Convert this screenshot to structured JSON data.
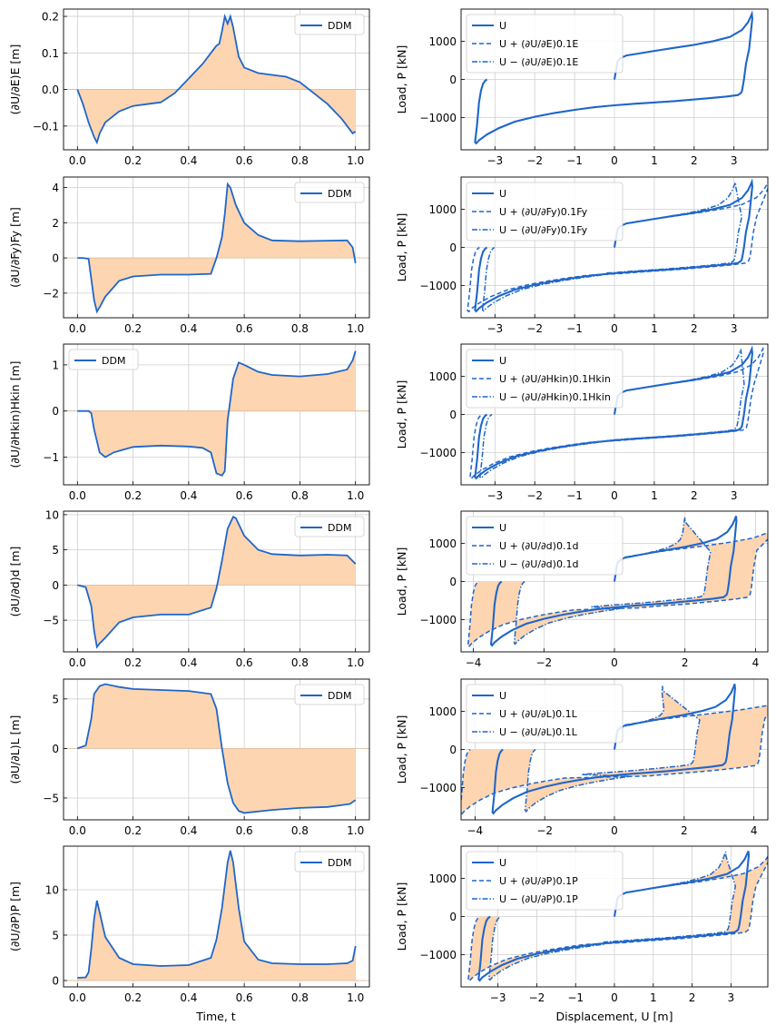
{
  "figure": {
    "left_xlabel": "Time, t",
    "right_xlabel": "Displacement, U [m]",
    "right_ylabel": "Load, P [kN]"
  },
  "colors": {
    "line": "#1f66c9",
    "fill": "#fdd5b1",
    "grid": "#cfcfcf"
  },
  "chart_data": [
    {
      "type": "line",
      "panel": "left",
      "row": 0,
      "ylabel": "(∂U/∂E)E [m]",
      "legend": [
        "DDM"
      ],
      "legend_position": "top-right",
      "fill_to_zero": true,
      "grid": true,
      "xlim": [
        -0.05,
        1.05
      ],
      "ylim": [
        -0.165,
        0.22
      ],
      "xticks": [
        0.0,
        0.2,
        0.4,
        0.6,
        0.8,
        1.0
      ],
      "yticks": [
        -0.1,
        0.0,
        0.1,
        0.2
      ],
      "x": [
        0,
        0.02,
        0.04,
        0.06,
        0.07,
        0.08,
        0.1,
        0.15,
        0.2,
        0.25,
        0.3,
        0.35,
        0.4,
        0.45,
        0.48,
        0.5,
        0.51,
        0.52,
        0.53,
        0.54,
        0.55,
        0.56,
        0.57,
        0.58,
        0.6,
        0.65,
        0.7,
        0.75,
        0.8,
        0.85,
        0.9,
        0.95,
        0.98,
        0.99,
        1.0
      ],
      "y": [
        0,
        -0.04,
        -0.09,
        -0.13,
        -0.145,
        -0.12,
        -0.09,
        -0.06,
        -0.045,
        -0.04,
        -0.035,
        -0.01,
        0.03,
        0.07,
        0.1,
        0.12,
        0.125,
        0.16,
        0.2,
        0.18,
        0.2,
        0.17,
        0.13,
        0.09,
        0.06,
        0.045,
        0.04,
        0.035,
        0.02,
        -0.01,
        -0.04,
        -0.08,
        -0.11,
        -0.12,
        -0.115
      ]
    },
    {
      "type": "line",
      "panel": "left",
      "row": 1,
      "ylabel": "(∂U/∂Fy)Fy [m]",
      "legend": [
        "DDM"
      ],
      "legend_position": "top-right",
      "fill_to_zero": true,
      "grid": true,
      "xlim": [
        -0.05,
        1.05
      ],
      "ylim": [
        -3.4,
        4.6
      ],
      "xticks": [
        0.0,
        0.2,
        0.4,
        0.6,
        0.8,
        1.0
      ],
      "yticks": [
        -2,
        0,
        2,
        4
      ],
      "x": [
        0,
        0.02,
        0.04,
        0.05,
        0.06,
        0.07,
        0.08,
        0.1,
        0.15,
        0.2,
        0.3,
        0.4,
        0.48,
        0.5,
        0.51,
        0.52,
        0.53,
        0.54,
        0.55,
        0.57,
        0.6,
        0.65,
        0.7,
        0.8,
        0.9,
        0.97,
        0.99,
        1.0
      ],
      "y": [
        0,
        0,
        -0.05,
        -1.2,
        -2.4,
        -3.05,
        -2.8,
        -2.2,
        -1.3,
        -1.05,
        -0.95,
        -0.95,
        -0.9,
        0.0,
        0.6,
        1.2,
        2.5,
        4.2,
        4.0,
        3.0,
        2.0,
        1.3,
        1.0,
        0.95,
        0.98,
        1.0,
        0.6,
        -0.3
      ]
    },
    {
      "type": "line",
      "panel": "left",
      "row": 2,
      "ylabel": "(∂U/∂Hkin)Hkin [m]",
      "legend": [
        "DDM"
      ],
      "legend_position": "top-left",
      "fill_to_zero": true,
      "grid": true,
      "xlim": [
        -0.05,
        1.05
      ],
      "ylim": [
        -1.6,
        1.45
      ],
      "xticks": [
        0.0,
        0.2,
        0.4,
        0.6,
        0.8,
        1.0
      ],
      "yticks": [
        -1,
        0,
        1
      ],
      "x": [
        0,
        0.04,
        0.05,
        0.06,
        0.08,
        0.1,
        0.13,
        0.2,
        0.3,
        0.4,
        0.45,
        0.48,
        0.5,
        0.52,
        0.53,
        0.54,
        0.56,
        0.58,
        0.6,
        0.65,
        0.7,
        0.8,
        0.9,
        0.97,
        0.99,
        1.0
      ],
      "y": [
        0,
        0,
        -0.05,
        -0.4,
        -0.9,
        -1.0,
        -0.9,
        -0.78,
        -0.75,
        -0.77,
        -0.8,
        -0.9,
        -1.35,
        -1.4,
        -1.3,
        -0.2,
        0.7,
        1.05,
        1.0,
        0.85,
        0.78,
        0.75,
        0.8,
        0.9,
        1.1,
        1.3
      ]
    },
    {
      "type": "line",
      "panel": "left",
      "row": 3,
      "ylabel": "(∂U/∂d)d [m]",
      "legend": [
        "DDM"
      ],
      "legend_position": "top-right",
      "fill_to_zero": true,
      "grid": true,
      "xlim": [
        -0.05,
        1.05
      ],
      "ylim": [
        -9.5,
        10.5
      ],
      "xticks": [
        0.0,
        0.2,
        0.4,
        0.6,
        0.8,
        1.0
      ],
      "yticks": [
        -5,
        0,
        5,
        10
      ],
      "x": [
        0,
        0.03,
        0.05,
        0.06,
        0.07,
        0.08,
        0.1,
        0.15,
        0.2,
        0.3,
        0.4,
        0.48,
        0.5,
        0.52,
        0.54,
        0.56,
        0.57,
        0.6,
        0.65,
        0.7,
        0.8,
        0.9,
        0.97,
        1.0
      ],
      "y": [
        0,
        -0.3,
        -3.0,
        -6.5,
        -8.8,
        -8.3,
        -7.5,
        -5.3,
        -4.6,
        -4.2,
        -4.2,
        -3.2,
        -0.5,
        3.5,
        8.0,
        9.7,
        9.5,
        7.0,
        5.0,
        4.4,
        4.2,
        4.3,
        4.2,
        3.0
      ]
    },
    {
      "type": "line",
      "panel": "left",
      "row": 4,
      "ylabel": "(∂U/∂L)L [m]",
      "legend": [
        "DDM"
      ],
      "legend_position": "top-right",
      "fill_to_zero": true,
      "grid": true,
      "xlim": [
        -0.05,
        1.05
      ],
      "ylim": [
        -7.2,
        7.0
      ],
      "xticks": [
        0.0,
        0.2,
        0.4,
        0.6,
        0.8,
        1.0
      ],
      "yticks": [
        -5,
        0,
        5
      ],
      "x": [
        0,
        0.03,
        0.05,
        0.06,
        0.08,
        0.1,
        0.15,
        0.2,
        0.3,
        0.4,
        0.48,
        0.5,
        0.52,
        0.54,
        0.56,
        0.58,
        0.6,
        0.7,
        0.8,
        0.9,
        0.98,
        1.0
      ],
      "y": [
        0,
        0.3,
        3.0,
        5.5,
        6.3,
        6.5,
        6.2,
        6.0,
        5.9,
        5.8,
        5.5,
        4.0,
        0.0,
        -3.5,
        -5.5,
        -6.3,
        -6.5,
        -6.2,
        -6.0,
        -5.9,
        -5.6,
        -5.2
      ]
    },
    {
      "type": "line",
      "panel": "left",
      "row": 5,
      "ylabel": "(∂U/∂P)P [m]",
      "legend": [
        "DDM"
      ],
      "legend_position": "top-right",
      "fill_to_zero": true,
      "grid": true,
      "xlim": [
        -0.05,
        1.05
      ],
      "ylim": [
        -0.7,
        14.8
      ],
      "xticks": [
        0.0,
        0.2,
        0.4,
        0.6,
        0.8,
        1.0
      ],
      "yticks": [
        0,
        5,
        10
      ],
      "x": [
        0,
        0.03,
        0.04,
        0.05,
        0.06,
        0.07,
        0.08,
        0.1,
        0.15,
        0.2,
        0.3,
        0.4,
        0.48,
        0.5,
        0.52,
        0.54,
        0.55,
        0.56,
        0.58,
        0.6,
        0.65,
        0.7,
        0.8,
        0.9,
        0.97,
        0.99,
        1.0
      ],
      "y": [
        0.3,
        0.35,
        0.9,
        3.5,
        6.8,
        8.8,
        7.5,
        4.8,
        2.5,
        1.8,
        1.6,
        1.7,
        2.5,
        4.5,
        8.0,
        13.0,
        14.3,
        13.0,
        8.0,
        4.3,
        2.3,
        1.9,
        1.8,
        1.8,
        1.9,
        2.2,
        3.8
      ]
    },
    {
      "type": "line",
      "panel": "right",
      "row": 0,
      "ylabel": "Load, P [kN]",
      "legend": [
        "U",
        "U + (∂U/∂E)0.1E",
        "U − (∂U/∂E)0.1E"
      ],
      "legend_position": "top-left",
      "grid": true,
      "spread": 0,
      "xlim": [
        -3.85,
        3.85
      ],
      "ylim": [
        -1850,
        1850
      ],
      "xticks": [
        -3,
        -2,
        -1,
        0,
        1,
        2,
        3
      ],
      "yticks": [
        -1000,
        0,
        1000
      ],
      "x": [
        0,
        0.08,
        0.15,
        0.3,
        0.6,
        1.0,
        1.5,
        2.0,
        2.5,
        2.9,
        3.2,
        3.35,
        3.42,
        3.45,
        3.46,
        3.38,
        3.3,
        3.25,
        3.22,
        3.2,
        3.18,
        3.1,
        2.8,
        2.3,
        1.5,
        0.5,
        0,
        -0.5,
        -1.0,
        -1.5,
        -2.0,
        -2.5,
        -2.9,
        -3.2,
        -3.4,
        -3.47,
        -3.5,
        -3.45,
        -3.4,
        -3.35,
        -3.3,
        -3.25,
        -3.2
      ],
      "y": [
        0,
        480,
        560,
        630,
        680,
        750,
        830,
        910,
        1010,
        1120,
        1300,
        1500,
        1650,
        1720,
        1600,
        800,
        400,
        0,
        -200,
        -300,
        -350,
        -410,
        -450,
        -500,
        -570,
        -640,
        -680,
        -730,
        -800,
        -880,
        -980,
        -1110,
        -1280,
        -1450,
        -1600,
        -1680,
        -1650,
        -1200,
        -600,
        -300,
        -120,
        -40,
        0
      ]
    },
    {
      "type": "line",
      "panel": "right",
      "row": 1,
      "ylabel": "Load, P [kN]",
      "legend": [
        "U",
        "U + (∂U/∂Fy)0.1Fy",
        "U − (∂U/∂Fy)0.1Fy"
      ],
      "legend_position": "top-left",
      "grid": true,
      "spread": 0.12,
      "xlim": [
        -3.85,
        3.85
      ],
      "ylim": [
        -1850,
        1850
      ],
      "xticks": [
        -3,
        -2,
        -1,
        0,
        1,
        2,
        3
      ],
      "yticks": [
        -1000,
        0,
        1000
      ],
      "x": [
        0,
        0.08,
        0.15,
        0.3,
        0.6,
        1.0,
        1.5,
        2.0,
        2.5,
        2.9,
        3.2,
        3.35,
        3.42,
        3.45,
        3.46,
        3.38,
        3.3,
        3.25,
        3.22,
        3.2,
        3.18,
        3.1,
        2.8,
        2.3,
        1.5,
        0.5,
        0,
        -0.5,
        -1.0,
        -1.5,
        -2.0,
        -2.5,
        -2.9,
        -3.2,
        -3.4,
        -3.47,
        -3.5,
        -3.45,
        -3.4,
        -3.35,
        -3.3,
        -3.25,
        -3.2
      ],
      "y": [
        0,
        480,
        560,
        630,
        680,
        750,
        830,
        910,
        1010,
        1120,
        1300,
        1500,
        1650,
        1720,
        1600,
        800,
        400,
        0,
        -200,
        -300,
        -350,
        -410,
        -450,
        -500,
        -570,
        -640,
        -680,
        -730,
        -800,
        -880,
        -980,
        -1110,
        -1280,
        -1450,
        -1600,
        -1680,
        -1650,
        -1200,
        -600,
        -300,
        -120,
        -40,
        0
      ]
    },
    {
      "type": "line",
      "panel": "right",
      "row": 2,
      "ylabel": "Load, P [kN]",
      "legend": [
        "U",
        "U + (∂U/∂Hkin)0.1Hkin",
        "U − (∂U/∂Hkin)0.1Hkin"
      ],
      "legend_position": "top-left",
      "grid": true,
      "spread": 0.08,
      "xlim": [
        -3.85,
        3.85
      ],
      "ylim": [
        -1850,
        1850
      ],
      "xticks": [
        -3,
        -2,
        -1,
        0,
        1,
        2,
        3
      ],
      "yticks": [
        -1000,
        0,
        1000
      ],
      "x": [
        0,
        0.08,
        0.15,
        0.3,
        0.6,
        1.0,
        1.5,
        2.0,
        2.5,
        2.9,
        3.2,
        3.35,
        3.42,
        3.45,
        3.46,
        3.38,
        3.3,
        3.25,
        3.22,
        3.2,
        3.18,
        3.1,
        2.8,
        2.3,
        1.5,
        0.5,
        0,
        -0.5,
        -1.0,
        -1.5,
        -2.0,
        -2.5,
        -2.9,
        -3.2,
        -3.4,
        -3.47,
        -3.5,
        -3.45,
        -3.4,
        -3.35,
        -3.3,
        -3.25,
        -3.2
      ],
      "y": [
        0,
        480,
        560,
        630,
        680,
        750,
        830,
        910,
        1010,
        1120,
        1300,
        1500,
        1650,
        1720,
        1600,
        800,
        400,
        0,
        -200,
        -300,
        -350,
        -410,
        -450,
        -500,
        -570,
        -640,
        -680,
        -730,
        -800,
        -880,
        -980,
        -1110,
        -1280,
        -1450,
        -1600,
        -1680,
        -1650,
        -1200,
        -600,
        -300,
        -120,
        -40,
        0
      ]
    },
    {
      "type": "line",
      "panel": "right",
      "row": 3,
      "ylabel": "Load, P [kN]",
      "legend": [
        "U",
        "U + (∂U/∂d)0.1d",
        "U − (∂U/∂d)0.1d"
      ],
      "legend_position": "top-left",
      "grid": true,
      "spread": 0.42,
      "fill_between": true,
      "xlim": [
        -4.35,
        4.35
      ],
      "ylim": [
        -1850,
        1850
      ],
      "xticks": [
        -4,
        -2,
        0,
        2,
        4
      ],
      "yticks": [
        -1000,
        0,
        1000
      ],
      "x": [
        0,
        0.08,
        0.15,
        0.3,
        0.6,
        1.0,
        1.5,
        2.0,
        2.5,
        2.9,
        3.2,
        3.35,
        3.42,
        3.45,
        3.46,
        3.38,
        3.3,
        3.25,
        3.22,
        3.2,
        3.18,
        3.1,
        2.8,
        2.3,
        1.5,
        0.5,
        0,
        -0.5,
        -1.0,
        -1.5,
        -2.0,
        -2.5,
        -2.9,
        -3.2,
        -3.4,
        -3.47,
        -3.5,
        -3.45,
        -3.4,
        -3.35,
        -3.3,
        -3.25,
        -3.2
      ],
      "y": [
        0,
        480,
        560,
        630,
        680,
        750,
        830,
        910,
        1010,
        1120,
        1300,
        1500,
        1650,
        1720,
        1600,
        800,
        400,
        0,
        -200,
        -300,
        -350,
        -410,
        -450,
        -500,
        -570,
        -640,
        -680,
        -730,
        -800,
        -880,
        -980,
        -1110,
        -1280,
        -1450,
        -1600,
        -1680,
        -1650,
        -1200,
        -600,
        -300,
        -120,
        -40,
        0
      ]
    },
    {
      "type": "line",
      "panel": "right",
      "row": 4,
      "ylabel": "Load, P [kN]",
      "legend": [
        "U",
        "U + (∂U/∂L)0.1L",
        "U − (∂U/∂L)0.1L"
      ],
      "legend_position": "top-left",
      "grid": true,
      "spread": 0.6,
      "fill_between": true,
      "xlim": [
        -4.4,
        4.4
      ],
      "ylim": [
        -1850,
        1850
      ],
      "xticks": [
        -4,
        -2,
        0,
        2,
        4
      ],
      "yticks": [
        -1000,
        0,
        1000
      ],
      "x": [
        0,
        0.08,
        0.15,
        0.3,
        0.6,
        1.0,
        1.5,
        2.0,
        2.5,
        2.9,
        3.2,
        3.35,
        3.42,
        3.45,
        3.46,
        3.38,
        3.3,
        3.25,
        3.22,
        3.2,
        3.18,
        3.1,
        2.8,
        2.3,
        1.5,
        0.5,
        0,
        -0.5,
        -1.0,
        -1.5,
        -2.0,
        -2.5,
        -2.9,
        -3.2,
        -3.4,
        -3.47,
        -3.5,
        -3.45,
        -3.4,
        -3.35,
        -3.3,
        -3.25,
        -3.2
      ],
      "y": [
        0,
        480,
        560,
        630,
        680,
        750,
        830,
        910,
        1010,
        1120,
        1300,
        1500,
        1650,
        1720,
        1600,
        800,
        400,
        0,
        -200,
        -300,
        -350,
        -410,
        -450,
        -500,
        -570,
        -640,
        -680,
        -730,
        -800,
        -880,
        -980,
        -1110,
        -1280,
        -1450,
        -1600,
        -1680,
        -1650,
        -1200,
        -600,
        -300,
        -120,
        -40,
        0
      ]
    },
    {
      "type": "line",
      "panel": "right",
      "row": 5,
      "ylabel": "Load, P [kN]",
      "legend": [
        "U",
        "U + (∂U/∂P)0.1P",
        "U − (∂U/∂P)0.1P"
      ],
      "legend_position": "top-left",
      "grid": true,
      "spread": 0.17,
      "fill_between": true,
      "xlim": [
        -3.95,
        3.95
      ],
      "ylim": [
        -1850,
        1850
      ],
      "xticks": [
        -3,
        -2,
        -1,
        0,
        1,
        2,
        3
      ],
      "yticks": [
        -1000,
        0,
        1000
      ],
      "x": [
        0,
        0.08,
        0.15,
        0.3,
        0.6,
        1.0,
        1.5,
        2.0,
        2.5,
        2.9,
        3.2,
        3.35,
        3.42,
        3.45,
        3.46,
        3.38,
        3.3,
        3.25,
        3.22,
        3.2,
        3.18,
        3.1,
        2.8,
        2.3,
        1.5,
        0.5,
        0,
        -0.5,
        -1.0,
        -1.5,
        -2.0,
        -2.5,
        -2.9,
        -3.2,
        -3.4,
        -3.47,
        -3.5,
        -3.45,
        -3.4,
        -3.35,
        -3.3,
        -3.25,
        -3.2
      ],
      "y": [
        0,
        480,
        560,
        630,
        680,
        750,
        830,
        910,
        1010,
        1120,
        1300,
        1500,
        1650,
        1720,
        1600,
        800,
        400,
        0,
        -200,
        -300,
        -350,
        -410,
        -450,
        -500,
        -570,
        -640,
        -680,
        -730,
        -800,
        -880,
        -980,
        -1110,
        -1280,
        -1450,
        -1600,
        -1680,
        -1650,
        -1200,
        -600,
        -300,
        -120,
        -40,
        0
      ]
    }
  ]
}
